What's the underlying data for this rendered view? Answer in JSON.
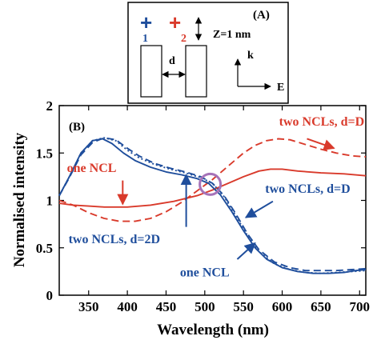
{
  "chart_data": {
    "type": "line",
    "panel_b_label": "(B)",
    "xlabel": "Wavelength (nm)",
    "ylabel": "Normalised intensity",
    "xlim": [
      312,
      708
    ],
    "ylim": [
      0,
      2
    ],
    "x_ticks": [
      350,
      400,
      450,
      500,
      550,
      600,
      650,
      700
    ],
    "y_ticks": [
      {
        "value": 0,
        "label": "0"
      },
      {
        "value": 0.5,
        "label": "0.5"
      },
      {
        "value": 1,
        "label": "1"
      },
      {
        "value": 1.5,
        "label": "1.5"
      },
      {
        "value": 2,
        "label": "2"
      }
    ],
    "colors": {
      "red": "#d93a2b",
      "blue": "#1f4e9c",
      "highlight": "#a673b8"
    },
    "series": [
      {
        "color": "red",
        "style": "solid",
        "points": [
          [
            312,
            0.97
          ],
          [
            330,
            0.95
          ],
          [
            350,
            0.94
          ],
          [
            370,
            0.93
          ],
          [
            400,
            0.93
          ],
          [
            430,
            0.95
          ],
          [
            460,
            0.99
          ],
          [
            490,
            1.05
          ],
          [
            510,
            1.11
          ],
          [
            530,
            1.18
          ],
          [
            550,
            1.25
          ],
          [
            570,
            1.31
          ],
          [
            585,
            1.33
          ],
          [
            600,
            1.33
          ],
          [
            620,
            1.31
          ],
          [
            650,
            1.29
          ],
          [
            680,
            1.28
          ],
          [
            708,
            1.26
          ]
        ]
      },
      {
        "color": "red",
        "style": "dashed",
        "points": [
          [
            312,
            1.0
          ],
          [
            330,
            0.95
          ],
          [
            350,
            0.87
          ],
          [
            370,
            0.81
          ],
          [
            390,
            0.78
          ],
          [
            410,
            0.78
          ],
          [
            430,
            0.81
          ],
          [
            450,
            0.88
          ],
          [
            470,
            0.98
          ],
          [
            490,
            1.1
          ],
          [
            510,
            1.22
          ],
          [
            530,
            1.36
          ],
          [
            550,
            1.5
          ],
          [
            565,
            1.58
          ],
          [
            580,
            1.63
          ],
          [
            595,
            1.65
          ],
          [
            610,
            1.64
          ],
          [
            630,
            1.59
          ],
          [
            650,
            1.54
          ],
          [
            670,
            1.5
          ],
          [
            690,
            1.47
          ],
          [
            708,
            1.46
          ]
        ]
      },
      {
        "color": "blue",
        "style": "solid",
        "points": [
          [
            312,
            1.05
          ],
          [
            325,
            1.25
          ],
          [
            340,
            1.5
          ],
          [
            355,
            1.63
          ],
          [
            368,
            1.65
          ],
          [
            380,
            1.6
          ],
          [
            395,
            1.5
          ],
          [
            410,
            1.42
          ],
          [
            430,
            1.35
          ],
          [
            450,
            1.3
          ],
          [
            470,
            1.27
          ],
          [
            490,
            1.23
          ],
          [
            505,
            1.18
          ],
          [
            520,
            1.06
          ],
          [
            535,
            0.88
          ],
          [
            550,
            0.68
          ],
          [
            565,
            0.5
          ],
          [
            580,
            0.38
          ],
          [
            600,
            0.29
          ],
          [
            620,
            0.25
          ],
          [
            640,
            0.23
          ],
          [
            660,
            0.23
          ],
          [
            680,
            0.24
          ],
          [
            695,
            0.26
          ],
          [
            708,
            0.27
          ]
        ]
      },
      {
        "color": "blue",
        "style": "dashed",
        "points": [
          [
            312,
            1.05
          ],
          [
            325,
            1.24
          ],
          [
            340,
            1.48
          ],
          [
            355,
            1.61
          ],
          [
            370,
            1.66
          ],
          [
            385,
            1.64
          ],
          [
            400,
            1.55
          ],
          [
            415,
            1.47
          ],
          [
            435,
            1.39
          ],
          [
            455,
            1.34
          ],
          [
            475,
            1.3
          ],
          [
            495,
            1.25
          ],
          [
            510,
            1.18
          ],
          [
            525,
            1.05
          ],
          [
            540,
            0.86
          ],
          [
            555,
            0.65
          ],
          [
            570,
            0.48
          ],
          [
            590,
            0.35
          ],
          [
            610,
            0.29
          ],
          [
            630,
            0.26
          ],
          [
            650,
            0.26
          ],
          [
            670,
            0.26
          ],
          [
            690,
            0.27
          ],
          [
            708,
            0.28
          ]
        ]
      },
      {
        "color": "blue",
        "style": "dotted",
        "points": [
          [
            312,
            1.05
          ],
          [
            325,
            1.25
          ],
          [
            340,
            1.5
          ],
          [
            355,
            1.63
          ],
          [
            370,
            1.66
          ],
          [
            385,
            1.63
          ],
          [
            400,
            1.53
          ],
          [
            415,
            1.45
          ],
          [
            435,
            1.38
          ],
          [
            455,
            1.33
          ],
          [
            475,
            1.29
          ],
          [
            495,
            1.24
          ],
          [
            510,
            1.18
          ],
          [
            525,
            1.04
          ],
          [
            540,
            0.84
          ],
          [
            555,
            0.63
          ],
          [
            570,
            0.46
          ],
          [
            590,
            0.33
          ],
          [
            610,
            0.27
          ],
          [
            630,
            0.24
          ],
          [
            650,
            0.23
          ],
          [
            670,
            0.24
          ],
          [
            690,
            0.25
          ],
          [
            708,
            0.26
          ]
        ]
      }
    ],
    "highlight_circle": {
      "x": 507,
      "y": 1.17
    },
    "annotations": [
      {
        "text": "two NCLs, d=D",
        "color": "red",
        "text_at": [
          596,
          1.79
        ],
        "arrow_from": [
          632,
          1.65
        ],
        "arrow_to": [
          667,
          1.55
        ]
      },
      {
        "text": "one NCL",
        "color": "red",
        "text_at": [
          322,
          1.3
        ],
        "arrow_from": [
          394,
          1.21
        ],
        "arrow_to": [
          394,
          0.96
        ]
      },
      {
        "text": "two NCLs, d=D",
        "color": "blue",
        "text_at": [
          578,
          1.08
        ],
        "arrow_from": [
          588,
          0.99
        ],
        "arrow_to": [
          553,
          0.82
        ]
      },
      {
        "text": "two NCLs, d=2D",
        "color": "blue",
        "text_at": [
          324,
          0.55
        ],
        "arrow_from": [
          476,
          0.72
        ],
        "arrow_to": [
          476,
          1.27
        ]
      },
      {
        "text": "one NCL",
        "color": "blue",
        "text_at": [
          468,
          0.2
        ],
        "arrow_from": [
          542,
          0.38
        ],
        "arrow_to": [
          565,
          0.55
        ]
      }
    ]
  },
  "inset": {
    "label": "(A)",
    "plus_1": "+",
    "plus_2": "+",
    "num_1": "1",
    "num_2": "2",
    "z_label": "Z=1 nm",
    "d_label": "d",
    "k_label": "k",
    "e_label": "E"
  }
}
